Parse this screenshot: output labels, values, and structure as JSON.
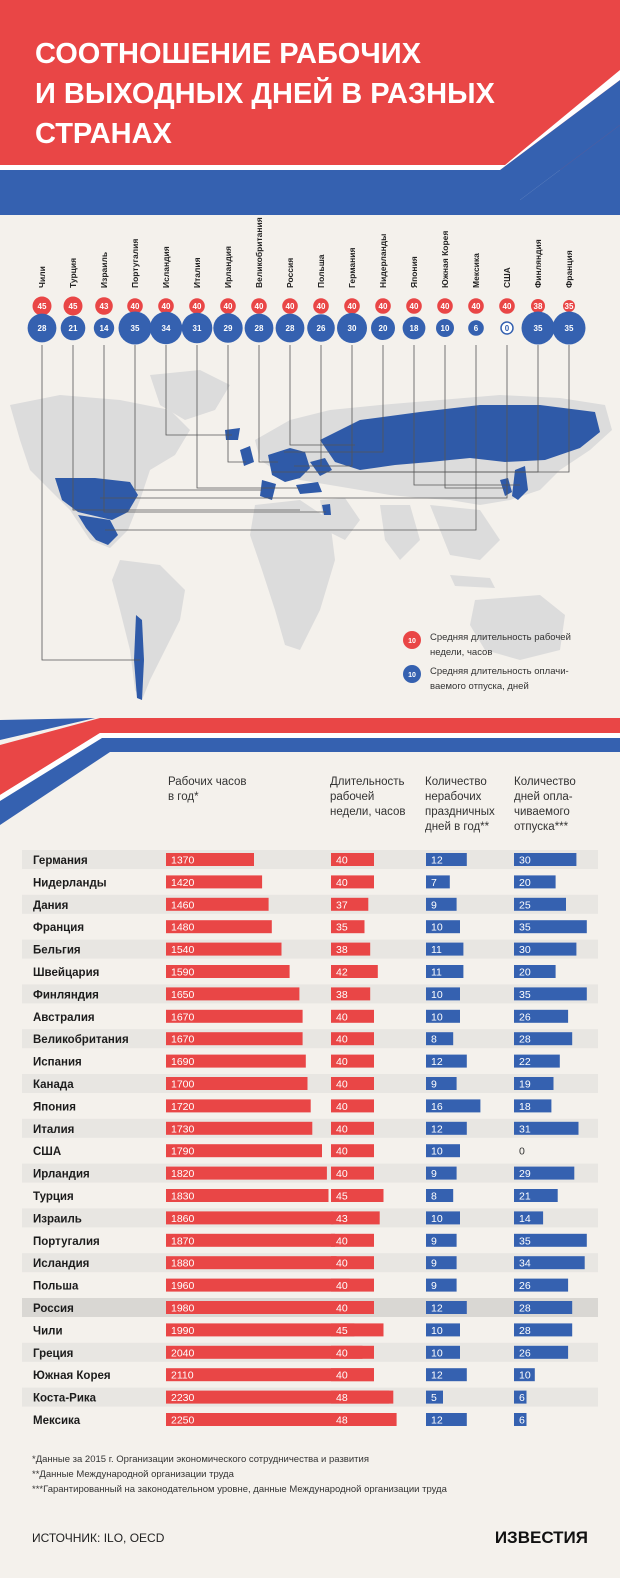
{
  "title": {
    "line1": "СООТНОШЕНИЕ РАБОЧИХ",
    "line2": "И ВЫХОДНЫХ ДНЕЙ В РАЗНЫХ",
    "line3": "СТРАНАХ"
  },
  "colors": {
    "red": "#e94646",
    "blue": "#3561b0",
    "background": "#f4f1ec",
    "map_land": "#dcdcdc",
    "map_highlight": "#2f5aa8",
    "row_stripe": "#e8e6e2",
    "row_highlight": "#d9d7d3"
  },
  "top_chart": {
    "countries": [
      {
        "name": "Чили",
        "week": "45",
        "vac": "28"
      },
      {
        "name": "Турция",
        "week": "45",
        "vac": "21"
      },
      {
        "name": "Израиль",
        "week": "43",
        "vac": "14"
      },
      {
        "name": "Португалия",
        "week": "40",
        "vac": "35"
      },
      {
        "name": "Исландия",
        "week": "40",
        "vac": "34"
      },
      {
        "name": "Италия",
        "week": "40",
        "vac": "31"
      },
      {
        "name": "Ирландия",
        "week": "40",
        "vac": "29"
      },
      {
        "name": "Великобритания",
        "week": "40",
        "vac": "28"
      },
      {
        "name": "Россия",
        "week": "40",
        "vac": "28"
      },
      {
        "name": "Польша",
        "week": "40",
        "vac": "26"
      },
      {
        "name": "Германия",
        "week": "40",
        "vac": "30"
      },
      {
        "name": "Нидерланды",
        "week": "40",
        "vac": "20"
      },
      {
        "name": "Япония",
        "week": "40",
        "vac": "18"
      },
      {
        "name": "Южная Корея",
        "week": "40",
        "vac": "10"
      },
      {
        "name": "Мексика",
        "week": "40",
        "vac": "6"
      },
      {
        "name": "США",
        "week": "40",
        "vac": "0"
      },
      {
        "name": "Финляндия",
        "week": "38",
        "vac": "35"
      },
      {
        "name": "Франция",
        "week": "35",
        "vac": "35"
      }
    ]
  },
  "legend": {
    "sample_value": "10",
    "red_line1": "Средняя длительность рабочей",
    "red_line2": "недели, часов",
    "blue_line1": "Средняя длительность оплачи-",
    "blue_line2": "ваемого отпуска, дней"
  },
  "table": {
    "headers": {
      "hours": [
        "Рабочих часов",
        "в год*"
      ],
      "week": [
        "Длительность",
        "рабочей",
        "недели, часов"
      ],
      "holidays": [
        "Количество",
        "нерабочих",
        "праздничных",
        "дней в год**"
      ],
      "vacation": [
        "Количество",
        "дней опла-",
        "чиваемого",
        "отпуска***"
      ]
    }
  },
  "chart_data": {
    "type": "bar",
    "categories": [
      "Германия",
      "Нидерланды",
      "Дания",
      "Франция",
      "Бельгия",
      "Швейцария",
      "Финляндия",
      "Австралия",
      "Великобритания",
      "Испания",
      "Канада",
      "Япония",
      "Италия",
      "США",
      "Ирландия",
      "Турция",
      "Израиль",
      "Португалия",
      "Исландия",
      "Польша",
      "Россия",
      "Чили",
      "Греция",
      "Южная Корея",
      "Коста-Рика",
      "Мексика"
    ],
    "series": [
      {
        "name": "Рабочих часов в год*",
        "values": [
          1370,
          1420,
          1460,
          1480,
          1540,
          1590,
          1650,
          1670,
          1670,
          1690,
          1700,
          1720,
          1730,
          1790,
          1820,
          1830,
          1860,
          1870,
          1880,
          1960,
          1980,
          1990,
          2040,
          2110,
          2230,
          2250
        ]
      },
      {
        "name": "Длительность рабочей недели, часов",
        "values": [
          40,
          40,
          37,
          35,
          38,
          42,
          38,
          40,
          40,
          40,
          40,
          40,
          40,
          40,
          40,
          45,
          43,
          40,
          40,
          40,
          40,
          45,
          40,
          40,
          48,
          48
        ]
      },
      {
        "name": "Количество нерабочих праздничных дней в год**",
        "values": [
          12,
          7,
          9,
          10,
          11,
          11,
          10,
          10,
          8,
          12,
          9,
          16,
          12,
          10,
          9,
          8,
          10,
          9,
          9,
          9,
          12,
          10,
          10,
          12,
          5,
          12
        ]
      },
      {
        "name": "Количество дней оплачиваемого отпуска***",
        "values": [
          30,
          20,
          25,
          35,
          30,
          20,
          35,
          26,
          28,
          22,
          19,
          18,
          31,
          0,
          29,
          21,
          14,
          35,
          34,
          26,
          28,
          28,
          26,
          10,
          6,
          6
        ]
      }
    ],
    "highlight_row": "Россия"
  },
  "footnotes": [
    "*Данные за 2015 г. Организации экономического сотрудничества и развития",
    "**Данные Международной организации труда",
    "***Гарантированный на законодательном уровне, данные Международной организации труда"
  ],
  "source": "ИСТОЧНИК: ILO, OECD",
  "logo": "ИЗВЕСТИЯ"
}
